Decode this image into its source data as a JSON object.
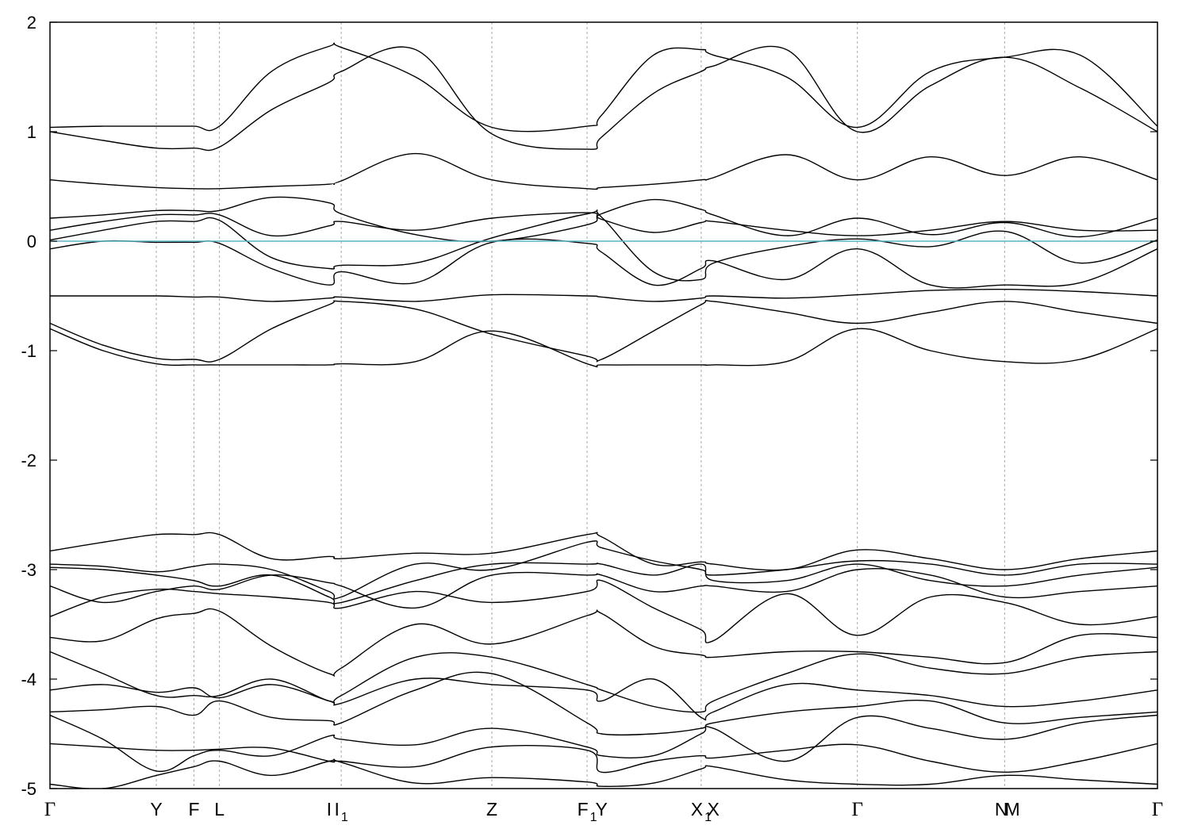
{
  "chart_data": {
    "type": "line",
    "title": "",
    "xlabel": "",
    "ylabel": "",
    "ylim": [
      -5,
      2
    ],
    "yticks": [
      {
        "value": 2,
        "label": "2"
      },
      {
        "value": 1,
        "label": "1"
      },
      {
        "value": 0,
        "label": "0"
      },
      {
        "value": -1,
        "label": "-1"
      },
      {
        "value": -2,
        "label": "-2"
      },
      {
        "value": -3,
        "label": "-3"
      },
      {
        "value": -4,
        "label": "-4"
      },
      {
        "value": -5,
        "label": "-5"
      }
    ],
    "xlim": [
      0,
      1
    ],
    "kpoints": [
      {
        "pos": 0.0,
        "label": "Γ",
        "sub": ""
      },
      {
        "pos": 0.096,
        "label": "Y",
        "sub": ""
      },
      {
        "pos": 0.13,
        "label": "F",
        "sub": ""
      },
      {
        "pos": 0.153,
        "label": "L",
        "sub": ""
      },
      {
        "pos": 0.252,
        "label": "I",
        "sub": ""
      },
      {
        "pos": 0.263,
        "label": "I",
        "sub": "1"
      },
      {
        "pos": 0.399,
        "label": "Z",
        "sub": ""
      },
      {
        "pos": 0.485,
        "label": "F",
        "sub": "1"
      },
      {
        "pos": 0.498,
        "label": "Y",
        "sub": ""
      },
      {
        "pos": 0.588,
        "label": "X",
        "sub": "1"
      },
      {
        "pos": 0.599,
        "label": "X",
        "sub": ""
      },
      {
        "pos": 0.729,
        "label": "Γ",
        "sub": ""
      },
      {
        "pos": 0.859,
        "label": "N",
        "sub": ""
      },
      {
        "pos": 0.869,
        "label": "M",
        "sub": ""
      },
      {
        "pos": 1.0,
        "label": "Γ",
        "sub": ""
      }
    ],
    "vlines": [
      0.096,
      0.13,
      0.153,
      0.263,
      0.399,
      0.485,
      0.588,
      0.729,
      0.862
    ],
    "fermi_level": 0,
    "fermi_color": "#5fb3c6",
    "band_color": "#000000",
    "grid": false,
    "legend": "none",
    "x": [
      0.0,
      0.048,
      0.096,
      0.13,
      0.153,
      0.2,
      0.252,
      0.263,
      0.33,
      0.399,
      0.485,
      0.498,
      0.545,
      0.588,
      0.599,
      0.665,
      0.729,
      0.795,
      0.862,
      0.93,
      1.0
    ],
    "series": [
      {
        "values": [
          1.04,
          1.05,
          1.05,
          1.05,
          1.05,
          1.55,
          1.78,
          1.77,
          1.5,
          1.04,
          1.05,
          1.15,
          1.7,
          1.75,
          1.7,
          1.5,
          1.04,
          1.55,
          1.68,
          1.7,
          1.05
        ]
      },
      {
        "values": [
          1.0,
          0.92,
          0.85,
          0.85,
          0.86,
          1.2,
          1.45,
          1.55,
          1.75,
          0.98,
          0.84,
          0.95,
          1.35,
          1.55,
          1.6,
          1.75,
          1.0,
          1.42,
          1.68,
          1.4,
          1.0
        ]
      },
      {
        "values": [
          0.56,
          0.52,
          0.49,
          0.48,
          0.48,
          0.5,
          0.52,
          0.55,
          0.8,
          0.56,
          0.48,
          0.49,
          0.52,
          0.56,
          0.58,
          0.79,
          0.56,
          0.77,
          0.6,
          0.77,
          0.56
        ]
      },
      {
        "values": [
          0.21,
          0.24,
          0.28,
          0.28,
          0.28,
          0.4,
          0.35,
          0.25,
          0.06,
          0.0,
          0.15,
          0.25,
          0.38,
          0.29,
          0.24,
          0.05,
          0.21,
          0.06,
          0.17,
          0.04,
          0.21
        ]
      },
      {
        "values": [
          0.1,
          0.18,
          0.24,
          0.24,
          0.24,
          0.05,
          0.14,
          0.18,
          0.1,
          0.21,
          0.26,
          0.2,
          0.08,
          0.17,
          0.18,
          0.1,
          0.05,
          0.1,
          0.18,
          0.1,
          0.1
        ]
      },
      {
        "values": [
          0.01,
          0.1,
          0.18,
          0.18,
          0.19,
          -0.15,
          -0.25,
          -0.22,
          -0.2,
          0.03,
          0.25,
          0.22,
          -0.28,
          -0.35,
          -0.2,
          -0.05,
          0.02,
          -0.05,
          0.09,
          -0.2,
          0.01
        ]
      },
      {
        "values": [
          -0.07,
          0.0,
          -0.01,
          -0.01,
          -0.02,
          -0.25,
          -0.4,
          -0.28,
          -0.38,
          -0.01,
          -0.02,
          -0.1,
          -0.4,
          -0.25,
          -0.18,
          -0.35,
          -0.07,
          -0.4,
          -0.4,
          -0.38,
          -0.07
        ]
      },
      {
        "values": [
          -0.5,
          -0.5,
          -0.5,
          -0.51,
          -0.51,
          -0.55,
          -0.52,
          -0.51,
          -0.55,
          -0.49,
          -0.5,
          -0.51,
          -0.55,
          -0.52,
          -0.5,
          -0.52,
          -0.49,
          -0.45,
          -0.44,
          -0.46,
          -0.5
        ]
      },
      {
        "values": [
          -0.75,
          -0.95,
          -1.07,
          -1.08,
          -1.08,
          -0.8,
          -0.58,
          -0.55,
          -0.62,
          -0.85,
          -1.05,
          -1.08,
          -0.82,
          -0.58,
          -0.55,
          -0.65,
          -0.75,
          -0.65,
          -0.55,
          -0.65,
          -0.75
        ]
      },
      {
        "values": [
          -0.8,
          -1.0,
          -1.12,
          -1.13,
          -1.13,
          -1.13,
          -1.13,
          -1.12,
          -1.1,
          -0.82,
          -1.12,
          -1.13,
          -1.13,
          -1.13,
          -1.13,
          -1.1,
          -0.8,
          -1.0,
          -1.1,
          -1.08,
          -0.8
        ]
      },
      {
        "values": [
          -2.83,
          -2.75,
          -2.68,
          -2.68,
          -2.68,
          -2.9,
          -2.88,
          -2.9,
          -2.85,
          -2.85,
          -2.68,
          -2.7,
          -2.95,
          -2.93,
          -2.95,
          -3.0,
          -2.82,
          -2.9,
          -3.0,
          -2.9,
          -2.83
        ]
      },
      {
        "values": [
          -2.95,
          -2.97,
          -3.02,
          -2.97,
          -2.95,
          -3.0,
          -3.2,
          -3.25,
          -2.95,
          -3.0,
          -2.75,
          -2.8,
          -2.92,
          -3.0,
          -3.05,
          -3.0,
          -2.92,
          -2.95,
          -3.05,
          -2.95,
          -2.95
        ]
      },
      {
        "values": [
          -2.98,
          -3.0,
          -3.05,
          -3.1,
          -3.15,
          -3.05,
          -3.25,
          -3.3,
          -3.1,
          -2.95,
          -2.95,
          -2.95,
          -3.05,
          -2.95,
          -3.1,
          -3.1,
          -2.95,
          -3.1,
          -3.15,
          -3.05,
          -2.98
        ]
      },
      {
        "values": [
          -3.15,
          -3.3,
          -3.2,
          -3.15,
          -3.18,
          -3.05,
          -3.12,
          -3.15,
          -3.35,
          -3.05,
          -3.05,
          -3.05,
          -3.2,
          -3.15,
          -3.15,
          -3.2,
          -3.0,
          -3.05,
          -3.25,
          -3.2,
          -3.15
        ]
      },
      {
        "values": [
          -3.43,
          -3.25,
          -3.18,
          -3.2,
          -3.22,
          -3.25,
          -3.3,
          -3.35,
          -3.2,
          -3.3,
          -3.2,
          -3.1,
          -3.35,
          -3.55,
          -3.65,
          -3.22,
          -3.6,
          -3.25,
          -3.3,
          -3.5,
          -3.43
        ]
      },
      {
        "values": [
          -3.62,
          -3.65,
          -3.45,
          -3.4,
          -3.38,
          -3.7,
          -3.95,
          -3.9,
          -3.5,
          -3.68,
          -3.42,
          -3.4,
          -3.7,
          -3.78,
          -3.8,
          -3.75,
          -3.75,
          -3.8,
          -3.85,
          -3.6,
          -3.62
        ]
      },
      {
        "values": [
          -3.75,
          -3.95,
          -4.15,
          -4.15,
          -4.15,
          -4.0,
          -4.2,
          -4.15,
          -3.8,
          -3.8,
          -4.05,
          -4.1,
          -4.25,
          -4.3,
          -4.2,
          -3.95,
          -3.77,
          -3.9,
          -3.95,
          -3.8,
          -3.75
        ]
      },
      {
        "values": [
          -4.1,
          -4.05,
          -4.12,
          -4.08,
          -4.17,
          -4.05,
          -4.2,
          -4.22,
          -4.0,
          -4.05,
          -4.1,
          -4.2,
          -4.0,
          -4.35,
          -4.3,
          -4.05,
          -4.1,
          -4.15,
          -4.25,
          -4.2,
          -4.1
        ]
      },
      {
        "values": [
          -4.3,
          -4.28,
          -4.25,
          -4.33,
          -4.2,
          -4.35,
          -4.38,
          -4.4,
          -4.1,
          -3.95,
          -4.4,
          -4.5,
          -4.5,
          -4.45,
          -4.4,
          -4.3,
          -4.25,
          -4.2,
          -4.4,
          -4.35,
          -4.3
        ]
      },
      {
        "values": [
          -4.33,
          -4.55,
          -4.84,
          -4.7,
          -4.65,
          -4.7,
          -4.52,
          -4.55,
          -4.6,
          -4.45,
          -4.62,
          -4.7,
          -4.7,
          -4.5,
          -4.45,
          -4.75,
          -4.35,
          -4.45,
          -4.55,
          -4.4,
          -4.33
        ]
      },
      {
        "values": [
          -4.59,
          -4.62,
          -4.65,
          -4.65,
          -4.64,
          -4.63,
          -4.75,
          -4.75,
          -4.8,
          -4.62,
          -4.65,
          -4.85,
          -4.75,
          -4.7,
          -4.72,
          -4.65,
          -4.6,
          -4.75,
          -4.85,
          -4.75,
          -4.59
        ]
      },
      {
        "values": [
          -4.96,
          -5.0,
          -4.88,
          -4.8,
          -4.75,
          -4.88,
          -4.75,
          -4.76,
          -4.95,
          -4.9,
          -4.94,
          -4.98,
          -4.95,
          -4.82,
          -4.8,
          -4.92,
          -4.96,
          -4.96,
          -4.88,
          -4.92,
          -4.96
        ]
      }
    ]
  }
}
